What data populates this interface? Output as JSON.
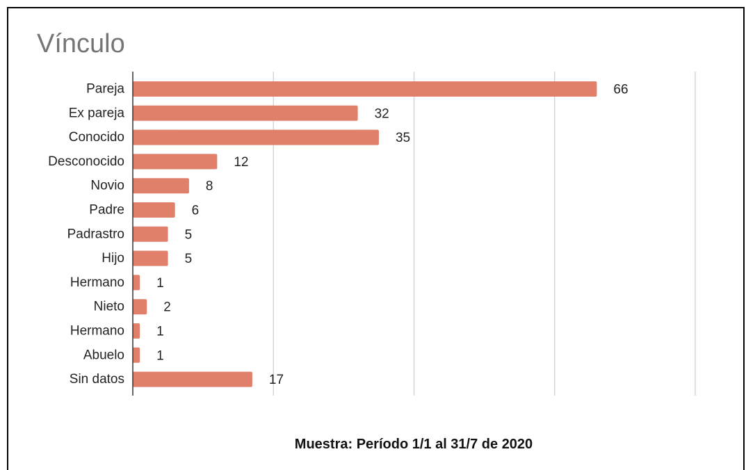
{
  "chart_data": {
    "type": "bar",
    "orientation": "horizontal",
    "title": "Vínculo",
    "categories": [
      "Pareja",
      "Ex pareja",
      "Conocido",
      "Desconocido",
      "Novio",
      "Padre",
      "Padrastro",
      "Hijo",
      "Hermano",
      "Nieto",
      "Hermano",
      "Abuelo",
      "Sin datos"
    ],
    "values": [
      66,
      32,
      35,
      12,
      8,
      6,
      5,
      5,
      1,
      2,
      1,
      1,
      17
    ],
    "data_labels": [
      "66",
      "32",
      "35",
      "12",
      "8",
      "6",
      "5",
      "5",
      "1",
      "2",
      "1",
      "1",
      "17"
    ],
    "xlim": [
      0,
      80
    ],
    "grid": true,
    "legend": "none",
    "bar_color": "#e07f6a"
  },
  "caption": "Muestra: Período 1/1 al 31/7 de 2020"
}
